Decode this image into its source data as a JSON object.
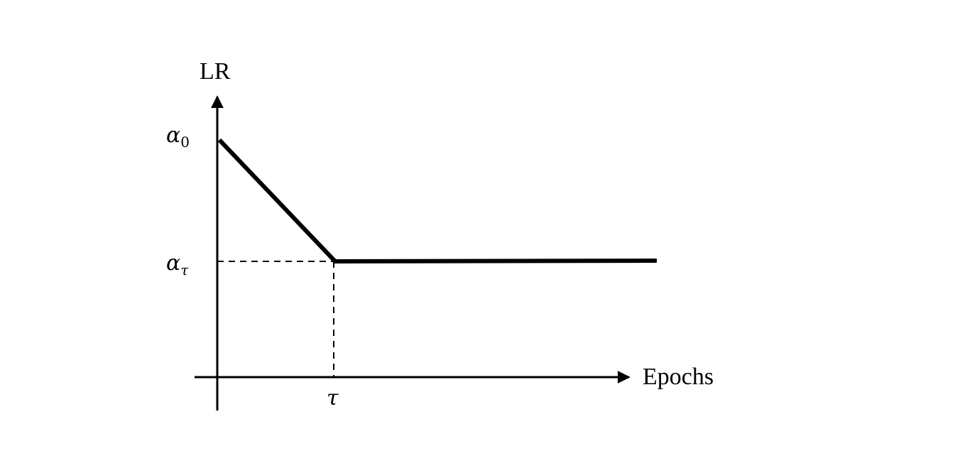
{
  "diagram": {
    "y_axis_label": "LR",
    "x_axis_label": "Epochs",
    "y_ticks": {
      "alpha_0": {
        "base": "α",
        "sub": "0"
      },
      "alpha_tau": {
        "base": "α",
        "sub": "τ"
      }
    },
    "x_ticks": {
      "tau": "τ"
    },
    "colors": {
      "line": "#000000",
      "background": "#ffffff"
    }
  }
}
